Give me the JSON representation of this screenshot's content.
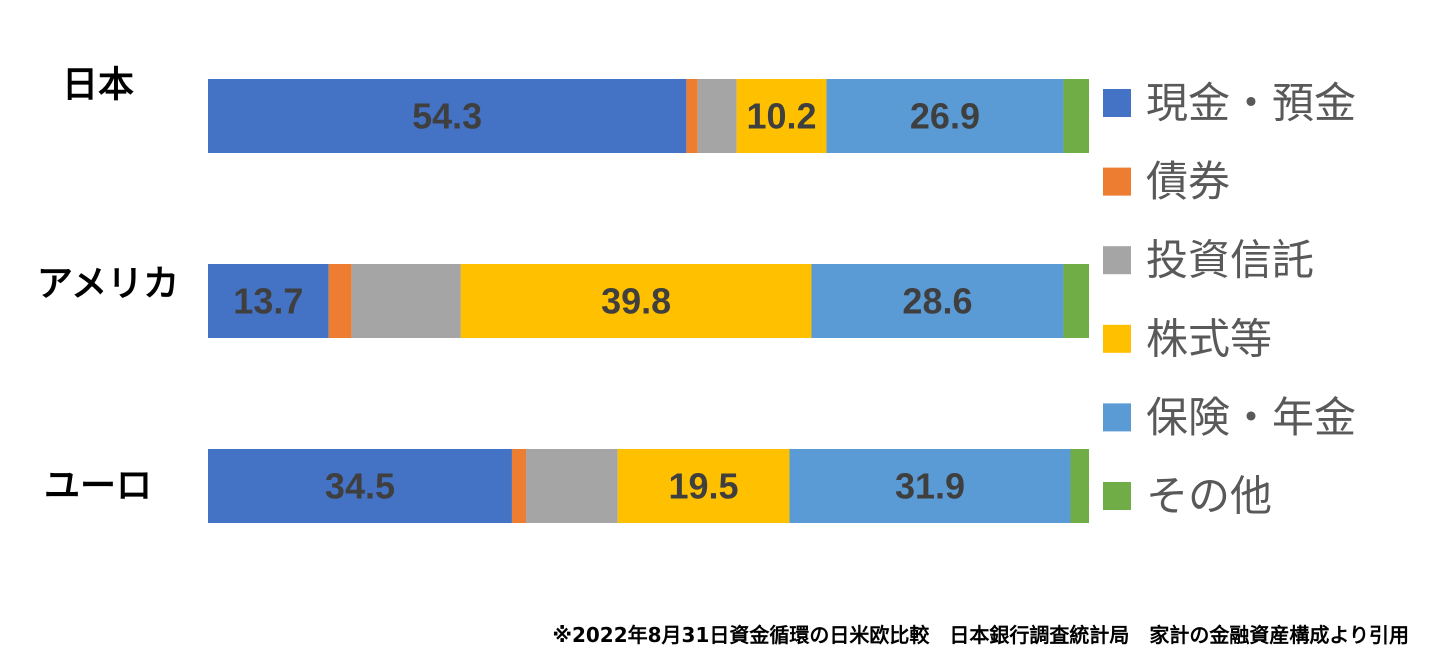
{
  "chart_data": {
    "type": "bar",
    "orientation": "horizontal",
    "stacked": true,
    "title": "",
    "xlabel": "",
    "ylabel": "",
    "xlim": [
      0,
      100
    ],
    "grid": false,
    "legend_position": "right",
    "categories": [
      "日本",
      "アメリカ",
      "ユーロ"
    ],
    "series": [
      {
        "name": "現金・預金",
        "color": "#4472c4",
        "values": [
          54.3,
          13.7,
          34.5
        ],
        "labels": [
          "54.3",
          "13.7",
          "34.5"
        ]
      },
      {
        "name": "債券",
        "color": "#ed7d31",
        "values": [
          1.3,
          2.6,
          1.6
        ],
        "labels": [
          "",
          "",
          ""
        ]
      },
      {
        "name": "投資信託",
        "color": "#a5a5a5",
        "values": [
          4.4,
          12.4,
          10.4
        ],
        "labels": [
          "",
          "",
          ""
        ]
      },
      {
        "name": "株式等",
        "color": "#ffc000",
        "values": [
          10.2,
          39.8,
          19.5
        ],
        "labels": [
          "10.2",
          "39.8",
          "19.5"
        ]
      },
      {
        "name": "保険・年金",
        "color": "#5b9bd5",
        "values": [
          26.9,
          28.6,
          31.9
        ],
        "labels": [
          "26.9",
          "28.6",
          "31.9"
        ]
      },
      {
        "name": "その他",
        "color": "#70ad47",
        "values": [
          2.9,
          2.9,
          2.1
        ],
        "labels": [
          "",
          "",
          ""
        ]
      }
    ]
  },
  "footnote": "※2022年8月31日資金循環の日米欧比較　日本銀行調査統計局　家計の金融資産構成より引用"
}
